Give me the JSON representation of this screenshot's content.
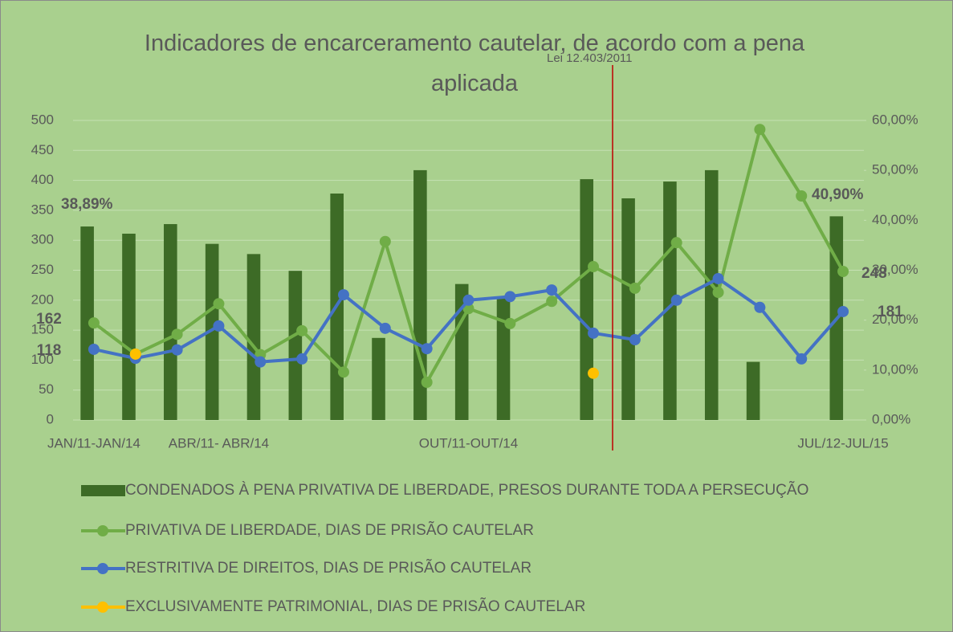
{
  "chart_data": {
    "type": "bar-line",
    "title": "Indicadores de encarceramento cautelar, de acordo com a pena aplicada",
    "categories": [
      "JAN/11-JAN/14",
      null,
      null,
      "ABR/11- ABR/14",
      null,
      null,
      null,
      null,
      null,
      "OUT/11-OUT/14",
      null,
      null,
      null,
      null,
      null,
      null,
      null,
      null,
      "JUL/12-JUL/15"
    ],
    "series": [
      {
        "name": "CONDENADOS À PENA PRIVATIVA DE LIBERDADE, PRESOS DURANTE TODA A PERSECUÇÃO",
        "type": "bar",
        "color": "#3d6b26",
        "values": [
          323,
          311,
          327,
          294,
          277,
          249,
          378,
          137,
          417,
          227,
          206,
          null,
          402,
          370,
          398,
          417,
          97,
          null,
          340
        ]
      },
      {
        "name": "PRIVATIVA DE LIBERDADE, DIAS DE PRISÃO CAUTELAR",
        "type": "line",
        "color": "#70ad47",
        "values": [
          162,
          110,
          143,
          194,
          109,
          149,
          80,
          298,
          63,
          186,
          161,
          198,
          256,
          220,
          296,
          213,
          485,
          374,
          248
        ]
      },
      {
        "name": "RESTRITIVA DE DIREITOS, DIAS DE PRISÃO CAUTELAR",
        "type": "line",
        "color": "#4472c4",
        "values": [
          118,
          103,
          117,
          157,
          97,
          102,
          209,
          153,
          119,
          200,
          206,
          217,
          145,
          134,
          200,
          236,
          188,
          102,
          181
        ]
      },
      {
        "name": "EXCLUSIVAMENTE PATRIMONIAL, DIAS DE PRISÃO CAUTELAR",
        "type": "line",
        "color": "#ffc000",
        "values": [
          null,
          110,
          null,
          null,
          null,
          null,
          null,
          null,
          null,
          null,
          null,
          null,
          78,
          null,
          null,
          null,
          null,
          null,
          null
        ]
      }
    ],
    "ylim": [
      0,
      500
    ],
    "yticks": [
      0,
      50,
      100,
      150,
      200,
      250,
      300,
      350,
      400,
      450,
      500
    ],
    "y2lim": [
      0,
      60
    ],
    "y2ticks": [
      {
        "value": 0,
        "label": "0,00%"
      },
      {
        "value": 10,
        "label": "10,00%"
      },
      {
        "value": 20,
        "label": "20,00%"
      },
      {
        "value": 30,
        "label": "30,00%"
      },
      {
        "value": 40,
        "label": "40,00%"
      },
      {
        "value": 50,
        "label": "50,00%"
      },
      {
        "value": 60,
        "label": "60,00%"
      }
    ],
    "grid": true,
    "annotations": [
      "38,89%",
      "162",
      "118",
      "40,90%",
      "248",
      "181",
      "Lei 12.403/2011"
    ],
    "legend": "bottom"
  }
}
